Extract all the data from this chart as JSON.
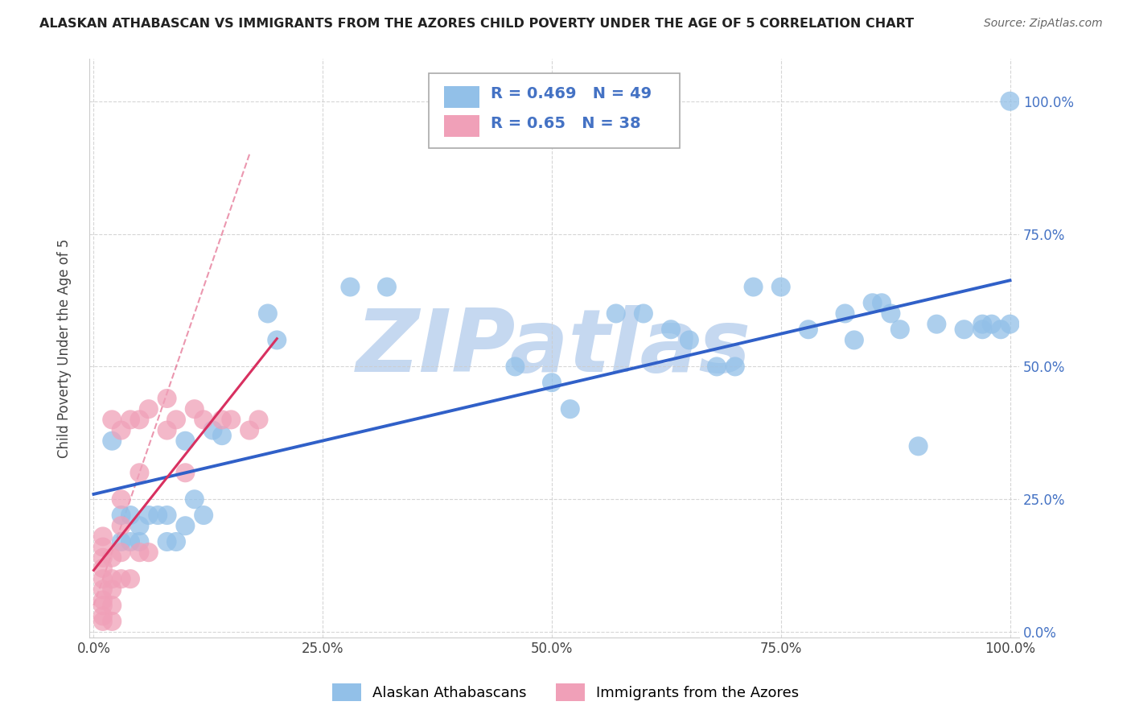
{
  "title": "ALASKAN ATHABASCAN VS IMMIGRANTS FROM THE AZORES CHILD POVERTY UNDER THE AGE OF 5 CORRELATION CHART",
  "source": "Source: ZipAtlas.com",
  "ylabel": "Child Poverty Under the Age of 5",
  "legend1_label": "Alaskan Athabascans",
  "legend2_label": "Immigrants from the Azores",
  "R1": 0.469,
  "N1": 49,
  "R2": 0.65,
  "N2": 38,
  "color1": "#92C0E8",
  "color2": "#F0A0B8",
  "line1_color": "#3060C8",
  "line2_color": "#D83060",
  "watermark": "ZIPatlas",
  "watermark_color": "#C5D8F0",
  "blue_x": [
    0.02,
    0.03,
    0.03,
    0.04,
    0.04,
    0.05,
    0.05,
    0.06,
    0.07,
    0.08,
    0.08,
    0.09,
    0.1,
    0.1,
    0.11,
    0.12,
    0.13,
    0.14,
    0.19,
    0.2,
    0.28,
    0.32,
    0.46,
    0.5,
    0.52,
    0.57,
    0.6,
    0.63,
    0.65,
    0.68,
    0.7,
    0.72,
    0.75,
    0.78,
    0.82,
    0.83,
    0.85,
    0.86,
    0.87,
    0.88,
    0.9,
    0.92,
    0.95,
    0.97,
    0.97,
    0.98,
    0.99,
    1.0,
    1.0
  ],
  "blue_y": [
    0.36,
    0.22,
    0.17,
    0.22,
    0.17,
    0.2,
    0.17,
    0.22,
    0.22,
    0.22,
    0.17,
    0.17,
    0.2,
    0.36,
    0.25,
    0.22,
    0.38,
    0.37,
    0.6,
    0.55,
    0.65,
    0.65,
    0.5,
    0.47,
    0.42,
    0.6,
    0.6,
    0.57,
    0.55,
    0.5,
    0.5,
    0.65,
    0.65,
    0.57,
    0.6,
    0.55,
    0.62,
    0.62,
    0.6,
    0.57,
    0.35,
    0.58,
    0.57,
    0.57,
    0.58,
    0.58,
    0.57,
    1.0,
    0.58
  ],
  "pink_x": [
    0.01,
    0.01,
    0.01,
    0.01,
    0.01,
    0.01,
    0.01,
    0.01,
    0.01,
    0.01,
    0.02,
    0.02,
    0.02,
    0.02,
    0.02,
    0.02,
    0.03,
    0.03,
    0.03,
    0.03,
    0.03,
    0.04,
    0.04,
    0.05,
    0.05,
    0.05,
    0.06,
    0.06,
    0.08,
    0.08,
    0.09,
    0.1,
    0.11,
    0.12,
    0.14,
    0.15,
    0.17,
    0.18
  ],
  "pink_y": [
    0.02,
    0.03,
    0.05,
    0.06,
    0.08,
    0.1,
    0.12,
    0.14,
    0.16,
    0.18,
    0.02,
    0.05,
    0.08,
    0.1,
    0.14,
    0.4,
    0.1,
    0.15,
    0.2,
    0.25,
    0.38,
    0.1,
    0.4,
    0.15,
    0.3,
    0.4,
    0.15,
    0.42,
    0.38,
    0.44,
    0.4,
    0.3,
    0.42,
    0.4,
    0.4,
    0.4,
    0.38,
    0.4
  ]
}
